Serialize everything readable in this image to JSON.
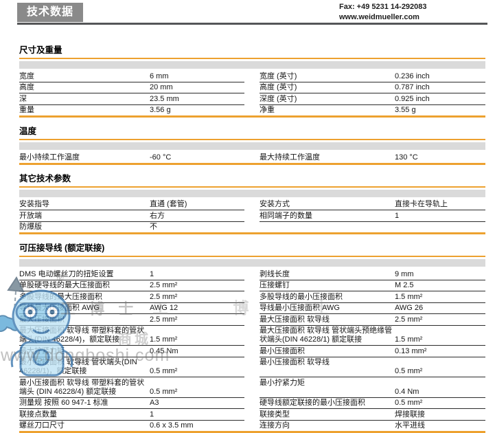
{
  "header": {
    "title": "技术数据",
    "fax": "Fax: +49 5231 14-292083",
    "website": "www.weidmueller.com"
  },
  "colors": {
    "accent_orange": "#EDA12F",
    "header_box_gray": "#8A8A8A",
    "band_gray": "#DADADA",
    "header_rule_gray": "#555658",
    "row_rule_dark": "#2B2B2B",
    "watermark_blue": "#8FC9E8"
  },
  "sections": [
    {
      "key": "dimensions-weight",
      "title": "尺寸及重量",
      "rows": [
        {
          "l": [
            "宽度",
            "6 mm"
          ],
          "r": [
            "宽度 (英寸)",
            "0.236 inch"
          ]
        },
        {
          "l": [
            "高度",
            "20 mm"
          ],
          "r": [
            "高度 (英寸)",
            "0.787 inch"
          ]
        },
        {
          "l": [
            "深",
            "23.5 mm"
          ],
          "r": [
            "深度 (英寸)",
            "0.925 inch"
          ]
        },
        {
          "l": [
            "重量",
            "3.56 g"
          ],
          "r": [
            "净重",
            "3.55 g"
          ]
        }
      ]
    },
    {
      "key": "temperature",
      "title": "温度",
      "rows": [
        {
          "l": [
            "最小持续工作温度",
            "-60 °C"
          ],
          "r": [
            "最大持续工作温度",
            "130 °C"
          ]
        }
      ]
    },
    {
      "key": "other-technical-parameters",
      "title": "其它技术参数",
      "rows": [
        {
          "l": [
            "安装指导",
            "直通 (套管)"
          ],
          "r": [
            "安装方式",
            "直接卡在导轨上"
          ]
        },
        {
          "l": [
            "开放端",
            "右方"
          ],
          "r": [
            "相同端子的数量",
            "1"
          ]
        },
        {
          "l": [
            "防爆版",
            "不"
          ],
          "r": null
        }
      ]
    },
    {
      "key": "crimpable-conductors-rated-connection",
      "title": "可压接导线 (额定联接)",
      "rows": [
        {
          "l": [
            "DMS 电动螺丝刀的扭矩设置",
            "1"
          ],
          "r": [
            "剥线长度",
            "9 mm"
          ]
        },
        {
          "l": [
            "单股硬导线的最大压接面积",
            "2.5 mm²"
          ],
          "r": [
            "压接螺钉",
            "M 2.5"
          ]
        },
        {
          "l": [
            "多股导线的最大压接面积",
            "2.5 mm²"
          ],
          "r": [
            "多股导线的最小压接面积",
            "1.5 mm²"
          ]
        },
        {
          "l": [
            "导线最大压接面积 AWG",
            "AWG 12"
          ],
          "r": [
            "导线最小压接面积 AWG",
            "AWG 26"
          ]
        },
        {
          "l": [
            "最大压接面积",
            "2.5 mm²"
          ],
          "r": [
            "最大压接面积 软导线",
            "2.5 mm²"
          ]
        },
        {
          "l": [
            "最大压接面积 软导线 带塑料套的管状端头(DIN 46228/4)，额定联接",
            "1.5 mm²"
          ],
          "r": [
            "最大压接面积 软导线 管状端头预绝缘管状端头(DIN 46228/1) 额定联接",
            "1.5 mm²"
          ]
        },
        {
          "l": [
            "最大拧紧力矩",
            "0.45 Nm"
          ],
          "r": [
            "最小压接面积",
            "0.13 mm²"
          ]
        },
        {
          "l": [
            "最小压接面积 软导线 管状端头(DIN 46228/1)，额定联接",
            "0.5 mm²"
          ],
          "r": [
            "最小压接面积 软导线",
            "0.5 mm²"
          ]
        },
        {
          "l": [
            "最小压接面积 软导线 带塑料套的管状端头 (DIN 46228/4) 额定联接",
            "0.5 mm²"
          ],
          "r": [
            "最小拧紧力矩",
            "0.4 Nm"
          ]
        },
        {
          "l": [
            "测量规 按照 60 947-1 标准",
            "A3"
          ],
          "r": [
            "硬导线额定联接的最小压接面积",
            "0.5 mm²"
          ]
        },
        {
          "l": [
            "联接点数量",
            "1"
          ],
          "r": [
            "联接类型",
            "焊接联接"
          ]
        },
        {
          "l": [
            "螺丝刀口尺寸",
            "0.6 x 3.5 mm"
          ],
          "r": [
            "连接方向",
            "水平进线"
          ]
        }
      ]
    }
  ],
  "watermark": {
    "registered": "®",
    "brand": "工 博 士",
    "brand_spread": "工 博 士",
    "mall": "商城",
    "url": "www.dongboshi.com"
  }
}
